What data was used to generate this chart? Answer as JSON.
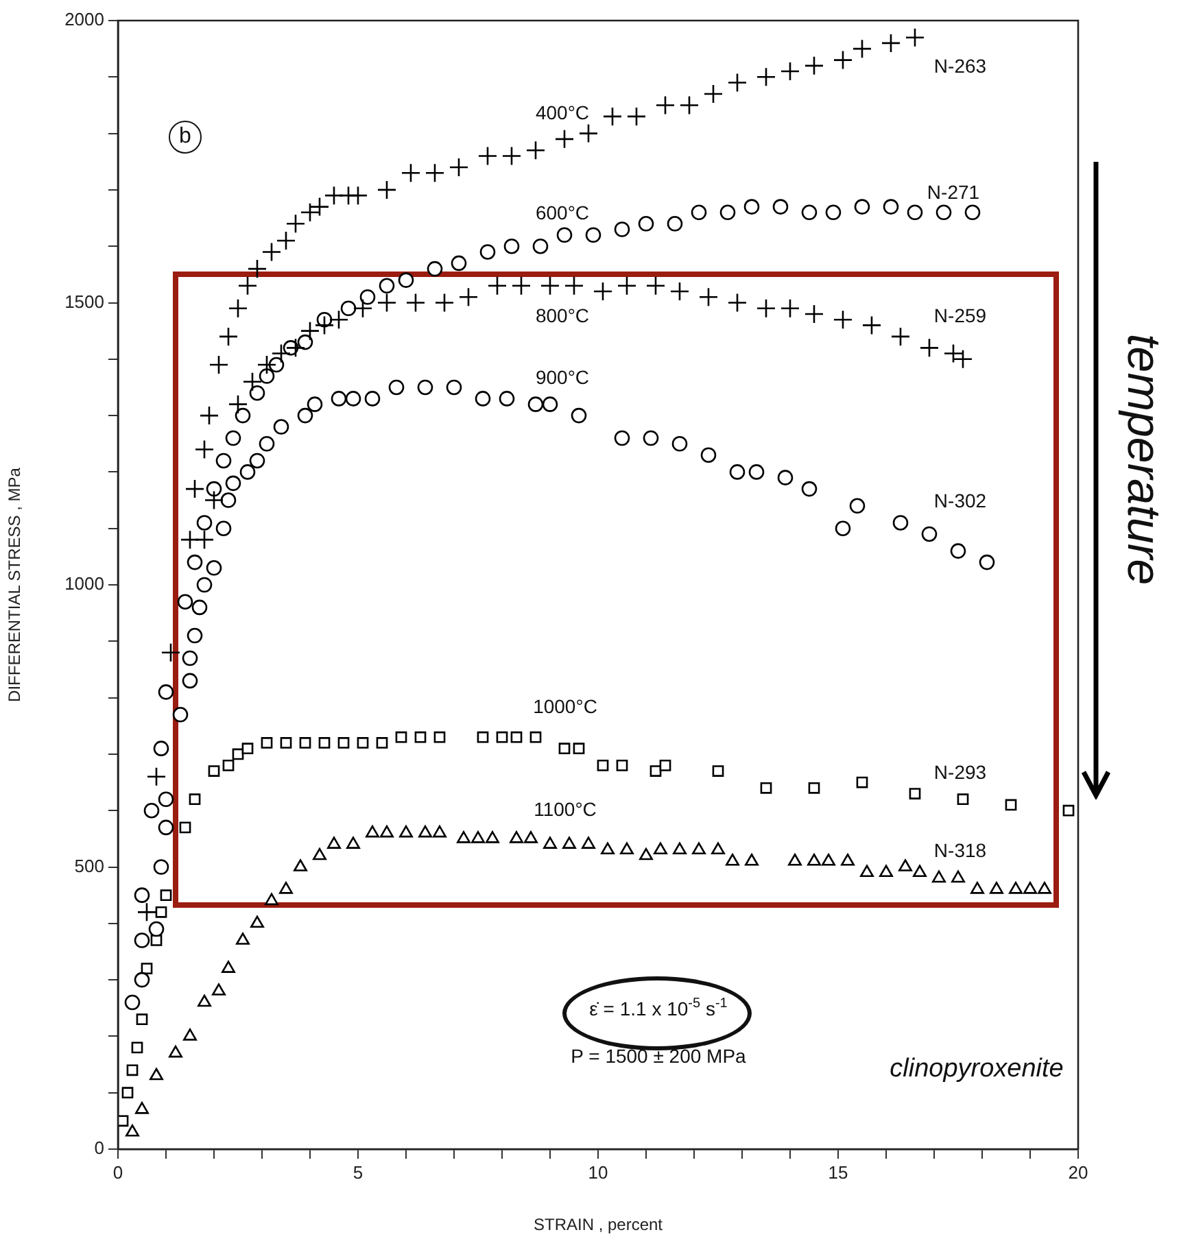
{
  "chart_data": {
    "type": "scatter",
    "xlabel": "STRAIN , percent",
    "ylabel": "DIFFERENTIAL STRESS , MPa",
    "xlim": [
      0,
      20
    ],
    "ylim": [
      0,
      2000
    ],
    "xticks": [
      0,
      {
        "value": 1,
        "label": null
      },
      {
        "value": 2,
        "label": null
      },
      {
        "value": 3,
        "label": null
      },
      {
        "value": 4,
        "label": null
      },
      5,
      {
        "value": 6,
        "label": null
      },
      {
        "value": 7,
        "label": null
      },
      {
        "value": 8,
        "label": null
      },
      {
        "value": 9,
        "label": null
      },
      10,
      {
        "value": 11,
        "label": null
      },
      {
        "value": 12,
        "label": null
      },
      {
        "value": 13,
        "label": null
      },
      {
        "value": 14,
        "label": null
      },
      15,
      {
        "value": 16,
        "label": null
      },
      {
        "value": 17,
        "label": null
      },
      {
        "value": 18,
        "label": null
      },
      {
        "value": 19,
        "label": null
      },
      20
    ],
    "yticks": [
      0,
      {
        "value": 100,
        "label": null
      },
      {
        "value": 200,
        "label": null
      },
      {
        "value": 300,
        "label": null
      },
      {
        "value": 400,
        "label": null
      },
      500,
      {
        "value": 600,
        "label": null
      },
      {
        "value": 700,
        "label": null
      },
      {
        "value": 800,
        "label": null
      },
      {
        "value": 900,
        "label": null
      },
      1000,
      {
        "value": 1100,
        "label": null
      },
      {
        "value": 1200,
        "label": null
      },
      {
        "value": 1300,
        "label": null
      },
      {
        "value": 1400,
        "label": null
      },
      1500,
      {
        "value": 1600,
        "label": null
      },
      {
        "value": 1700,
        "label": null
      },
      {
        "value": 1800,
        "label": null
      },
      {
        "value": 1900,
        "label": null
      },
      2000
    ],
    "grid": false,
    "legend": false,
    "series": [
      {
        "color": "#000000",
        "marker": "cross",
        "x": [
          0.6,
          0.8,
          1.1,
          1.5,
          1.6,
          1.8,
          1.9,
          2.1,
          2.3,
          2.5,
          2.7,
          2.9,
          3.2,
          3.5,
          3.7,
          4.0,
          4.2,
          4.5,
          4.8,
          5.0,
          5.6,
          6.1,
          6.6,
          7.1,
          7.7,
          8.2,
          8.7,
          9.3,
          9.8,
          10.3,
          10.8,
          11.4,
          11.9,
          12.4,
          12.9,
          13.5,
          14.0,
          14.5,
          15.1,
          15.5,
          16.1,
          16.6
        ],
        "values": [
          420,
          660,
          880,
          1080,
          1170,
          1240,
          1300,
          1390,
          1440,
          1490,
          1530,
          1560,
          1590,
          1610,
          1640,
          1660,
          1670,
          1690,
          1690,
          1690,
          1700,
          1730,
          1730,
          1740,
          1760,
          1760,
          1770,
          1790,
          1800,
          1830,
          1830,
          1850,
          1850,
          1870,
          1890,
          1900,
          1910,
          1920,
          1930,
          1950,
          1960,
          1970
        ]
      },
      {
        "color": "#000000",
        "marker": "circle",
        "x": [
          0.3,
          0.5,
          0.7,
          0.9,
          1.0,
          1.4,
          1.6,
          1.8,
          2.0,
          2.2,
          2.4,
          2.6,
          2.9,
          3.1,
          3.3,
          3.6,
          3.9,
          4.3,
          4.8,
          5.2,
          5.6,
          6.0,
          6.6,
          7.1,
          7.7,
          8.2,
          8.8,
          9.3,
          9.9,
          10.5,
          11.0,
          11.6,
          12.1,
          12.7,
          13.2,
          13.8,
          14.4,
          14.9,
          15.5,
          16.1,
          16.6,
          17.2,
          17.8
        ],
        "values": [
          260,
          370,
          600,
          710,
          810,
          970,
          1040,
          1110,
          1170,
          1220,
          1260,
          1300,
          1340,
          1370,
          1390,
          1420,
          1430,
          1470,
          1490,
          1510,
          1530,
          1540,
          1560,
          1570,
          1590,
          1600,
          1600,
          1620,
          1620,
          1630,
          1640,
          1640,
          1660,
          1660,
          1670,
          1670,
          1660,
          1660,
          1670,
          1670,
          1660,
          1660,
          1660
        ]
      },
      {
        "color": "#000000",
        "marker": "cross",
        "x": [
          1.8,
          2.0,
          2.5,
          2.8,
          3.1,
          3.4,
          3.7,
          4.0,
          4.3,
          4.6,
          5.1,
          5.6,
          6.2,
          6.8,
          7.3,
          7.9,
          8.4,
          9.0,
          9.5,
          10.1,
          10.6,
          11.2,
          11.7,
          12.3,
          12.9,
          13.5,
          14.0,
          14.5,
          15.1,
          15.7,
          16.3,
          16.9,
          17.4,
          17.6
        ],
        "values": [
          1080,
          1150,
          1320,
          1360,
          1390,
          1410,
          1420,
          1450,
          1460,
          1470,
          1490,
          1500,
          1500,
          1500,
          1510,
          1530,
          1530,
          1530,
          1530,
          1520,
          1530,
          1530,
          1520,
          1510,
          1500,
          1490,
          1490,
          1480,
          1470,
          1460,
          1440,
          1420,
          1410,
          1400
        ]
      },
      {
        "color": "#000000",
        "marker": "circle",
        "x": [
          0.5,
          0.5,
          0.8,
          0.9,
          1.0,
          1.0,
          1.3,
          1.5,
          1.5,
          1.6,
          1.7,
          1.8,
          2.0,
          2.2,
          2.3,
          2.4,
          2.7,
          2.9,
          3.1,
          3.4,
          3.9,
          4.1,
          4.6,
          4.9,
          5.3,
          5.8,
          6.4,
          7.0,
          7.6,
          8.1,
          8.7,
          9.0,
          9.6,
          10.5,
          11.1,
          11.7,
          12.3,
          12.9,
          13.3,
          13.9,
          14.4,
          15.1,
          15.4,
          16.3,
          16.9,
          17.5,
          18.1
        ],
        "values": [
          300,
          450,
          390,
          500,
          570,
          620,
          770,
          830,
          870,
          910,
          960,
          1000,
          1030,
          1100,
          1150,
          1180,
          1200,
          1220,
          1250,
          1280,
          1300,
          1320,
          1330,
          1330,
          1330,
          1350,
          1350,
          1350,
          1330,
          1330,
          1320,
          1320,
          1300,
          1260,
          1260,
          1250,
          1230,
          1200,
          1200,
          1190,
          1170,
          1100,
          1140,
          1110,
          1090,
          1060,
          1040
        ]
      },
      {
        "color": "#000000",
        "marker": "square",
        "x": [
          0.1,
          0.2,
          0.3,
          0.4,
          0.5,
          0.6,
          0.8,
          0.9,
          1.0,
          1.4,
          1.6,
          2.0,
          2.3,
          2.5,
          2.7,
          3.1,
          3.5,
          3.9,
          4.3,
          4.7,
          5.1,
          5.5,
          5.9,
          6.3,
          6.7,
          7.6,
          8.0,
          8.3,
          8.7,
          9.3,
          9.6,
          10.1,
          10.5,
          11.2,
          11.4,
          12.5,
          13.5,
          14.5,
          15.5,
          16.6,
          17.6,
          18.6,
          19.8
        ],
        "values": [
          50,
          100,
          140,
          180,
          230,
          320,
          370,
          420,
          450,
          570,
          620,
          670,
          680,
          700,
          710,
          720,
          720,
          720,
          720,
          720,
          720,
          720,
          730,
          730,
          730,
          730,
          730,
          730,
          730,
          710,
          710,
          680,
          680,
          670,
          680,
          670,
          640,
          640,
          650,
          630,
          620,
          610,
          600
        ]
      },
      {
        "color": "#000000",
        "marker": "triangle",
        "x": [
          0.3,
          0.5,
          0.8,
          1.2,
          1.5,
          1.8,
          2.1,
          2.3,
          2.6,
          2.9,
          3.2,
          3.5,
          3.8,
          4.2,
          4.5,
          4.9,
          5.3,
          5.6,
          6.0,
          6.4,
          6.7,
          7.2,
          7.5,
          7.8,
          8.3,
          8.6,
          9.0,
          9.4,
          9.8,
          10.2,
          10.6,
          11.0,
          11.3,
          11.7,
          12.1,
          12.5,
          12.8,
          13.2,
          14.1,
          14.5,
          14.8,
          15.2,
          15.6,
          16.0,
          16.4,
          16.7,
          17.1,
          17.5,
          17.9,
          18.3,
          18.7,
          19.0,
          19.3
        ],
        "values": [
          30,
          70,
          130,
          170,
          200,
          260,
          280,
          320,
          370,
          400,
          440,
          460,
          500,
          520,
          540,
          540,
          560,
          560,
          560,
          560,
          560,
          550,
          550,
          550,
          550,
          550,
          540,
          540,
          540,
          530,
          530,
          520,
          530,
          530,
          530,
          530,
          510,
          510,
          510,
          510,
          510,
          510,
          490,
          490,
          500,
          490,
          480,
          480,
          460,
          460,
          460,
          460,
          460
        ]
      }
    ],
    "annotations": [
      "400°C",
      "600°C",
      "800°C",
      "900°C",
      "1000°C",
      "1100°C",
      "N-263",
      "N-271",
      "N-259",
      "N-302",
      "N-293",
      "N-318",
      "b",
      "ε̇ = 1.1 x 10$^{-5}$ s$^{-1}$",
      "P = 1500 ± 200 MPa",
      "clinopyroxenite",
      "temperature"
    ]
  }
}
